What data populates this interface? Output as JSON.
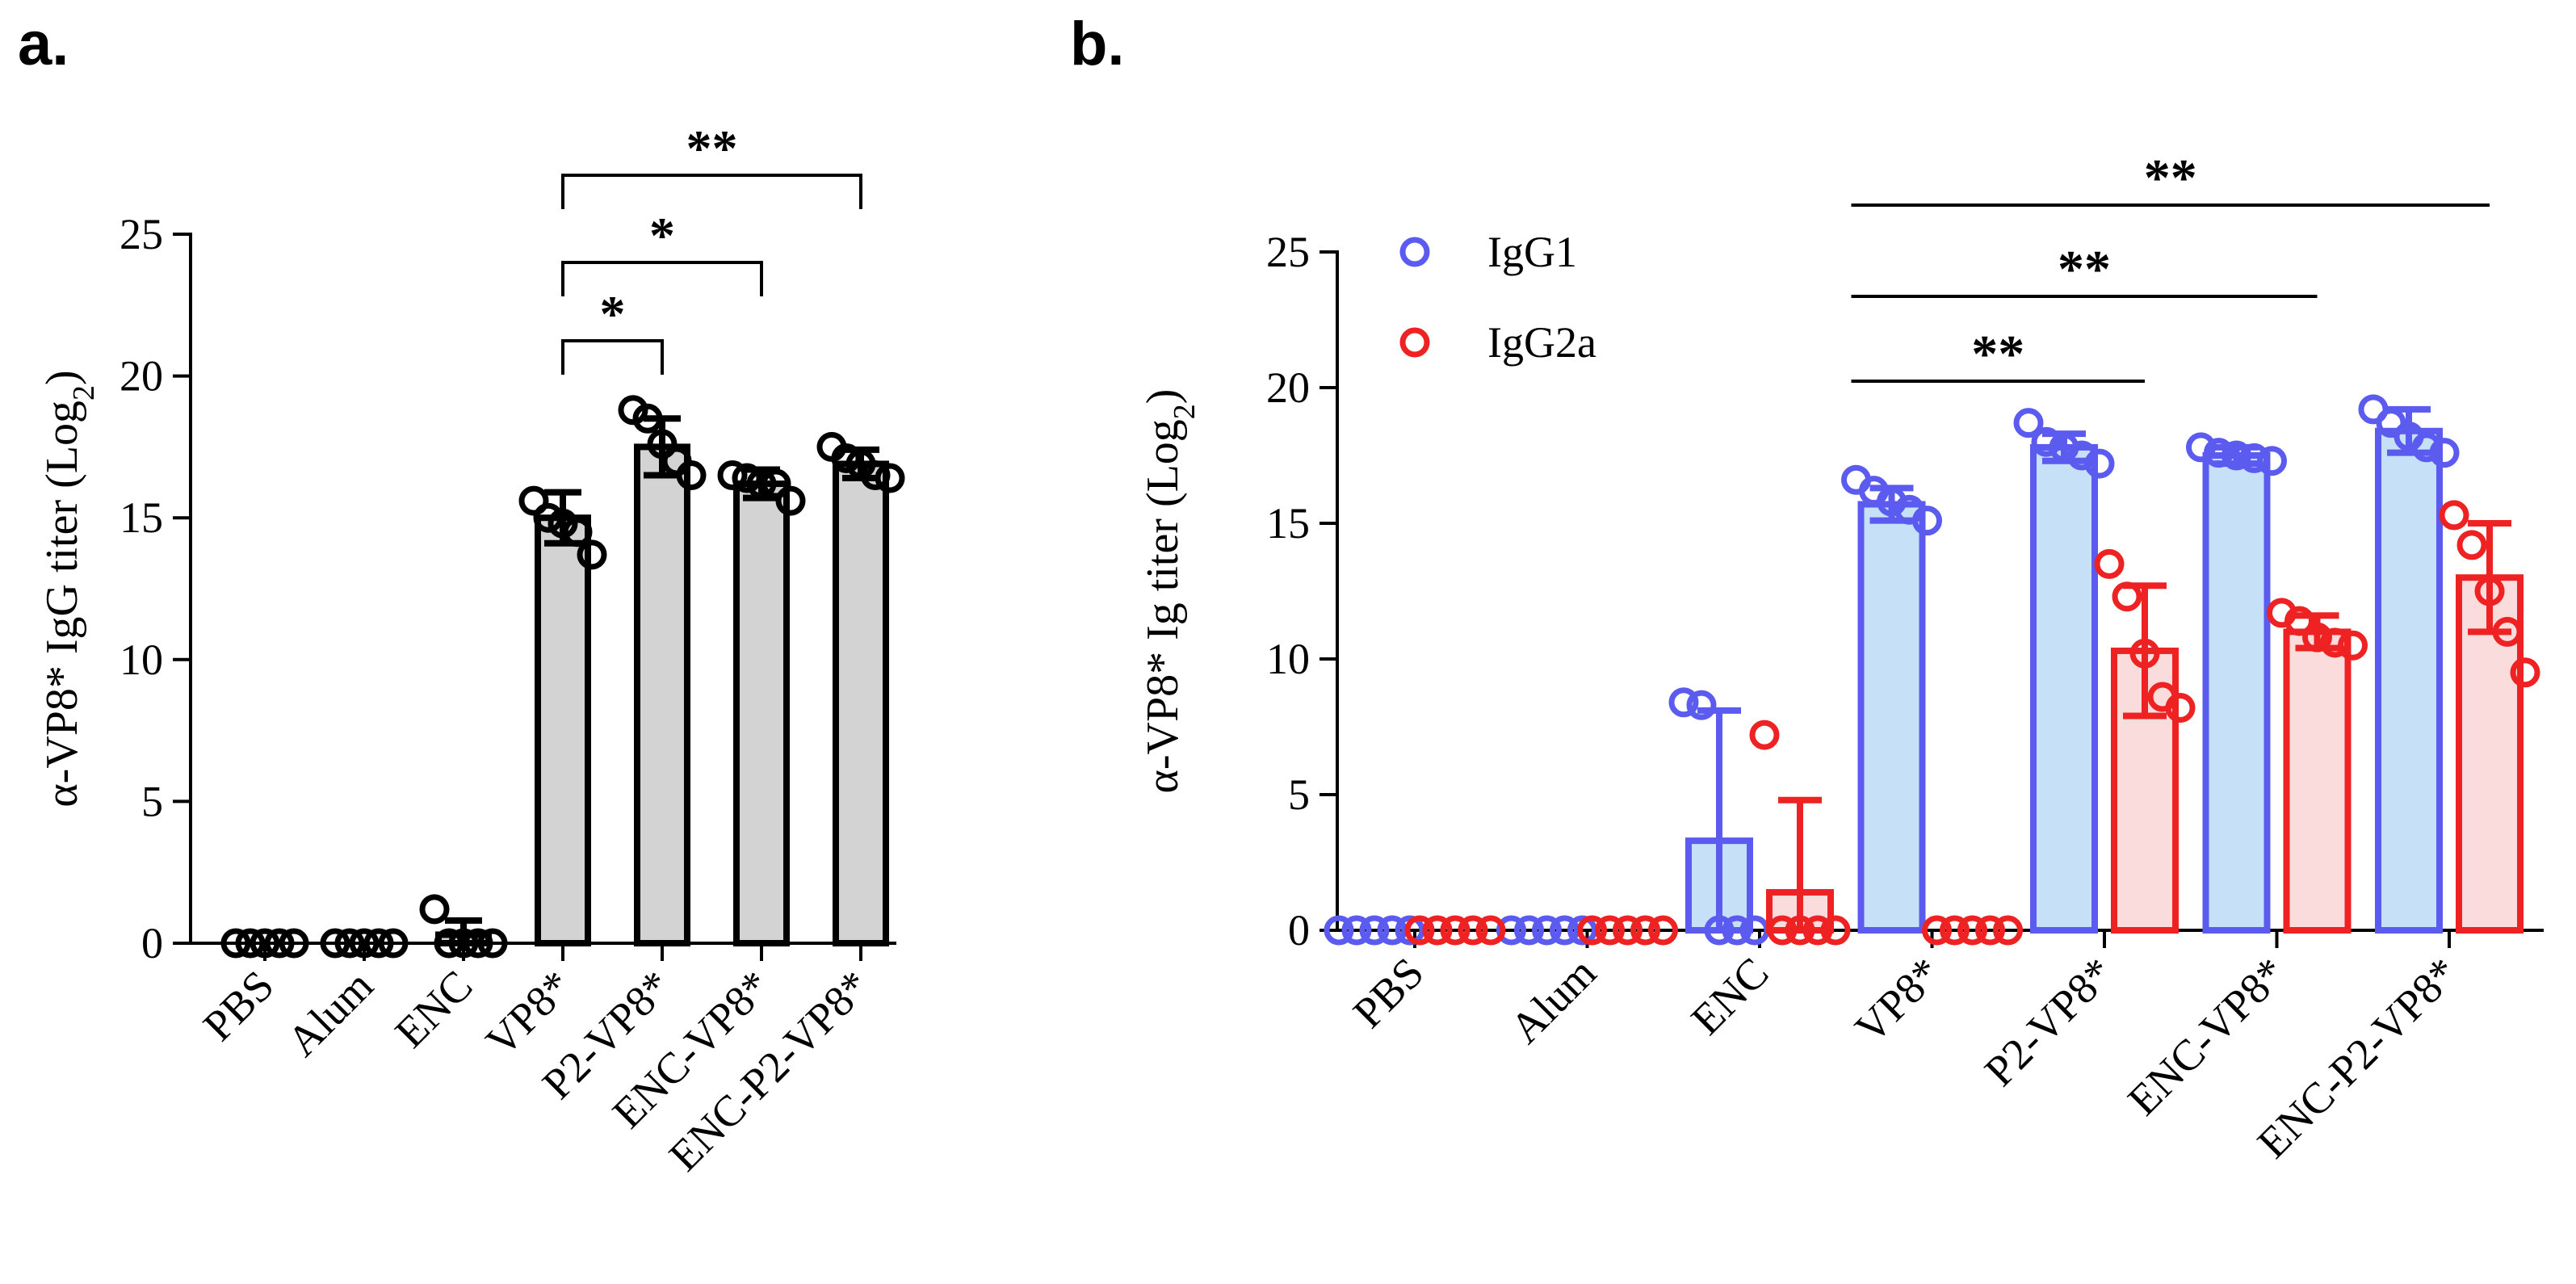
{
  "chart_data": [
    {
      "panel": "a.",
      "type": "bar",
      "ylabel_parts": [
        "α-VP8* IgG titer (Log",
        "2",
        ")"
      ],
      "ylim": [
        0,
        25
      ],
      "yticks": [
        0,
        5,
        10,
        15,
        20,
        25
      ],
      "categories": [
        "PBS",
        "Alum",
        "ENC",
        "VP8*",
        "P2-VP8*",
        "ENC-VP8*",
        "ENC-P2-VP8*"
      ],
      "series": [
        {
          "values": [
            0,
            0,
            0.3,
            15.0,
            17.5,
            16.2,
            16.9
          ],
          "errors": [
            0,
            0,
            0.5,
            0.9,
            1.0,
            0.5,
            0.5
          ],
          "points": [
            [
              0,
              0,
              0,
              0,
              0
            ],
            [
              0,
              0,
              0,
              0,
              0
            ],
            [
              1.2,
              0,
              0,
              0,
              0
            ],
            [
              15.6,
              15.0,
              14.8,
              14.5,
              13.7
            ],
            [
              18.8,
              18.5,
              17.6,
              17.0,
              16.5
            ],
            [
              16.5,
              16.4,
              16.2,
              16.2,
              15.6
            ],
            [
              17.5,
              17.1,
              16.9,
              16.5,
              16.4
            ]
          ],
          "bar_fill": "#d3d3d3",
          "color": "#000000"
        }
      ],
      "significance": [
        {
          "from": "VP8*",
          "to": "P2-VP8*",
          "label": "*"
        },
        {
          "from": "VP8*",
          "to": "ENC-VP8*",
          "label": "*"
        },
        {
          "from": "VP8*",
          "to": "ENC-P2-VP8*",
          "label": "**"
        }
      ]
    },
    {
      "panel": "b.",
      "type": "bar",
      "ylabel_parts": [
        "α-VP8* Ig titer (Log",
        "2",
        ")"
      ],
      "ylim": [
        0,
        25
      ],
      "yticks": [
        0,
        5,
        10,
        15,
        20,
        25
      ],
      "categories": [
        "PBS",
        "Alum",
        "ENC",
        "VP8*",
        "P2-VP8*",
        "ENC-VP8*",
        "ENC-P2-VP8*"
      ],
      "legend_position": "top-left",
      "series": [
        {
          "name": "IgG1",
          "values": [
            0,
            0,
            3.3,
            15.7,
            17.8,
            17.5,
            18.4
          ],
          "errors": [
            0,
            0,
            4.8,
            0.6,
            0.5,
            0.3,
            0.8
          ],
          "points": [
            [
              0,
              0,
              0,
              0,
              0
            ],
            [
              0,
              0,
              0,
              0,
              0
            ],
            [
              8.4,
              8.3,
              0,
              0,
              0
            ],
            [
              16.6,
              16.2,
              15.8,
              15.5,
              15.1
            ],
            [
              18.7,
              18.0,
              17.8,
              17.5,
              17.2
            ],
            [
              17.8,
              17.6,
              17.5,
              17.4,
              17.3
            ],
            [
              19.2,
              18.7,
              18.2,
              17.8,
              17.6
            ]
          ],
          "color": "#5b5bf0",
          "bar_fill": "#c5e0f7"
        },
        {
          "name": "IgG2a",
          "values": [
            0,
            0,
            1.4,
            0,
            10.3,
            11.0,
            13.0
          ],
          "errors": [
            0,
            0,
            3.4,
            0,
            2.4,
            0.6,
            2.0
          ],
          "points": [
            [
              0,
              0,
              0,
              0,
              0
            ],
            [
              0,
              0,
              0,
              0,
              0
            ],
            [
              7.2,
              0,
              0,
              0,
              0
            ],
            [
              0,
              0,
              0,
              0,
              0
            ],
            [
              13.5,
              12.3,
              10.2,
              8.6,
              8.2
            ],
            [
              11.7,
              11.4,
              10.8,
              10.6,
              10.5
            ],
            [
              15.3,
              14.2,
              12.5,
              11.0,
              9.5
            ]
          ],
          "color": "#ee2222",
          "bar_fill": "#fadcdc"
        }
      ],
      "significance": [
        {
          "from": "VP8*",
          "to": "P2-VP8*",
          "label": "**"
        },
        {
          "from": "VP8*",
          "to": "ENC-VP8*",
          "label": "**"
        },
        {
          "from": "VP8*",
          "to": "ENC-P2-VP8*",
          "label": "**"
        }
      ]
    }
  ]
}
